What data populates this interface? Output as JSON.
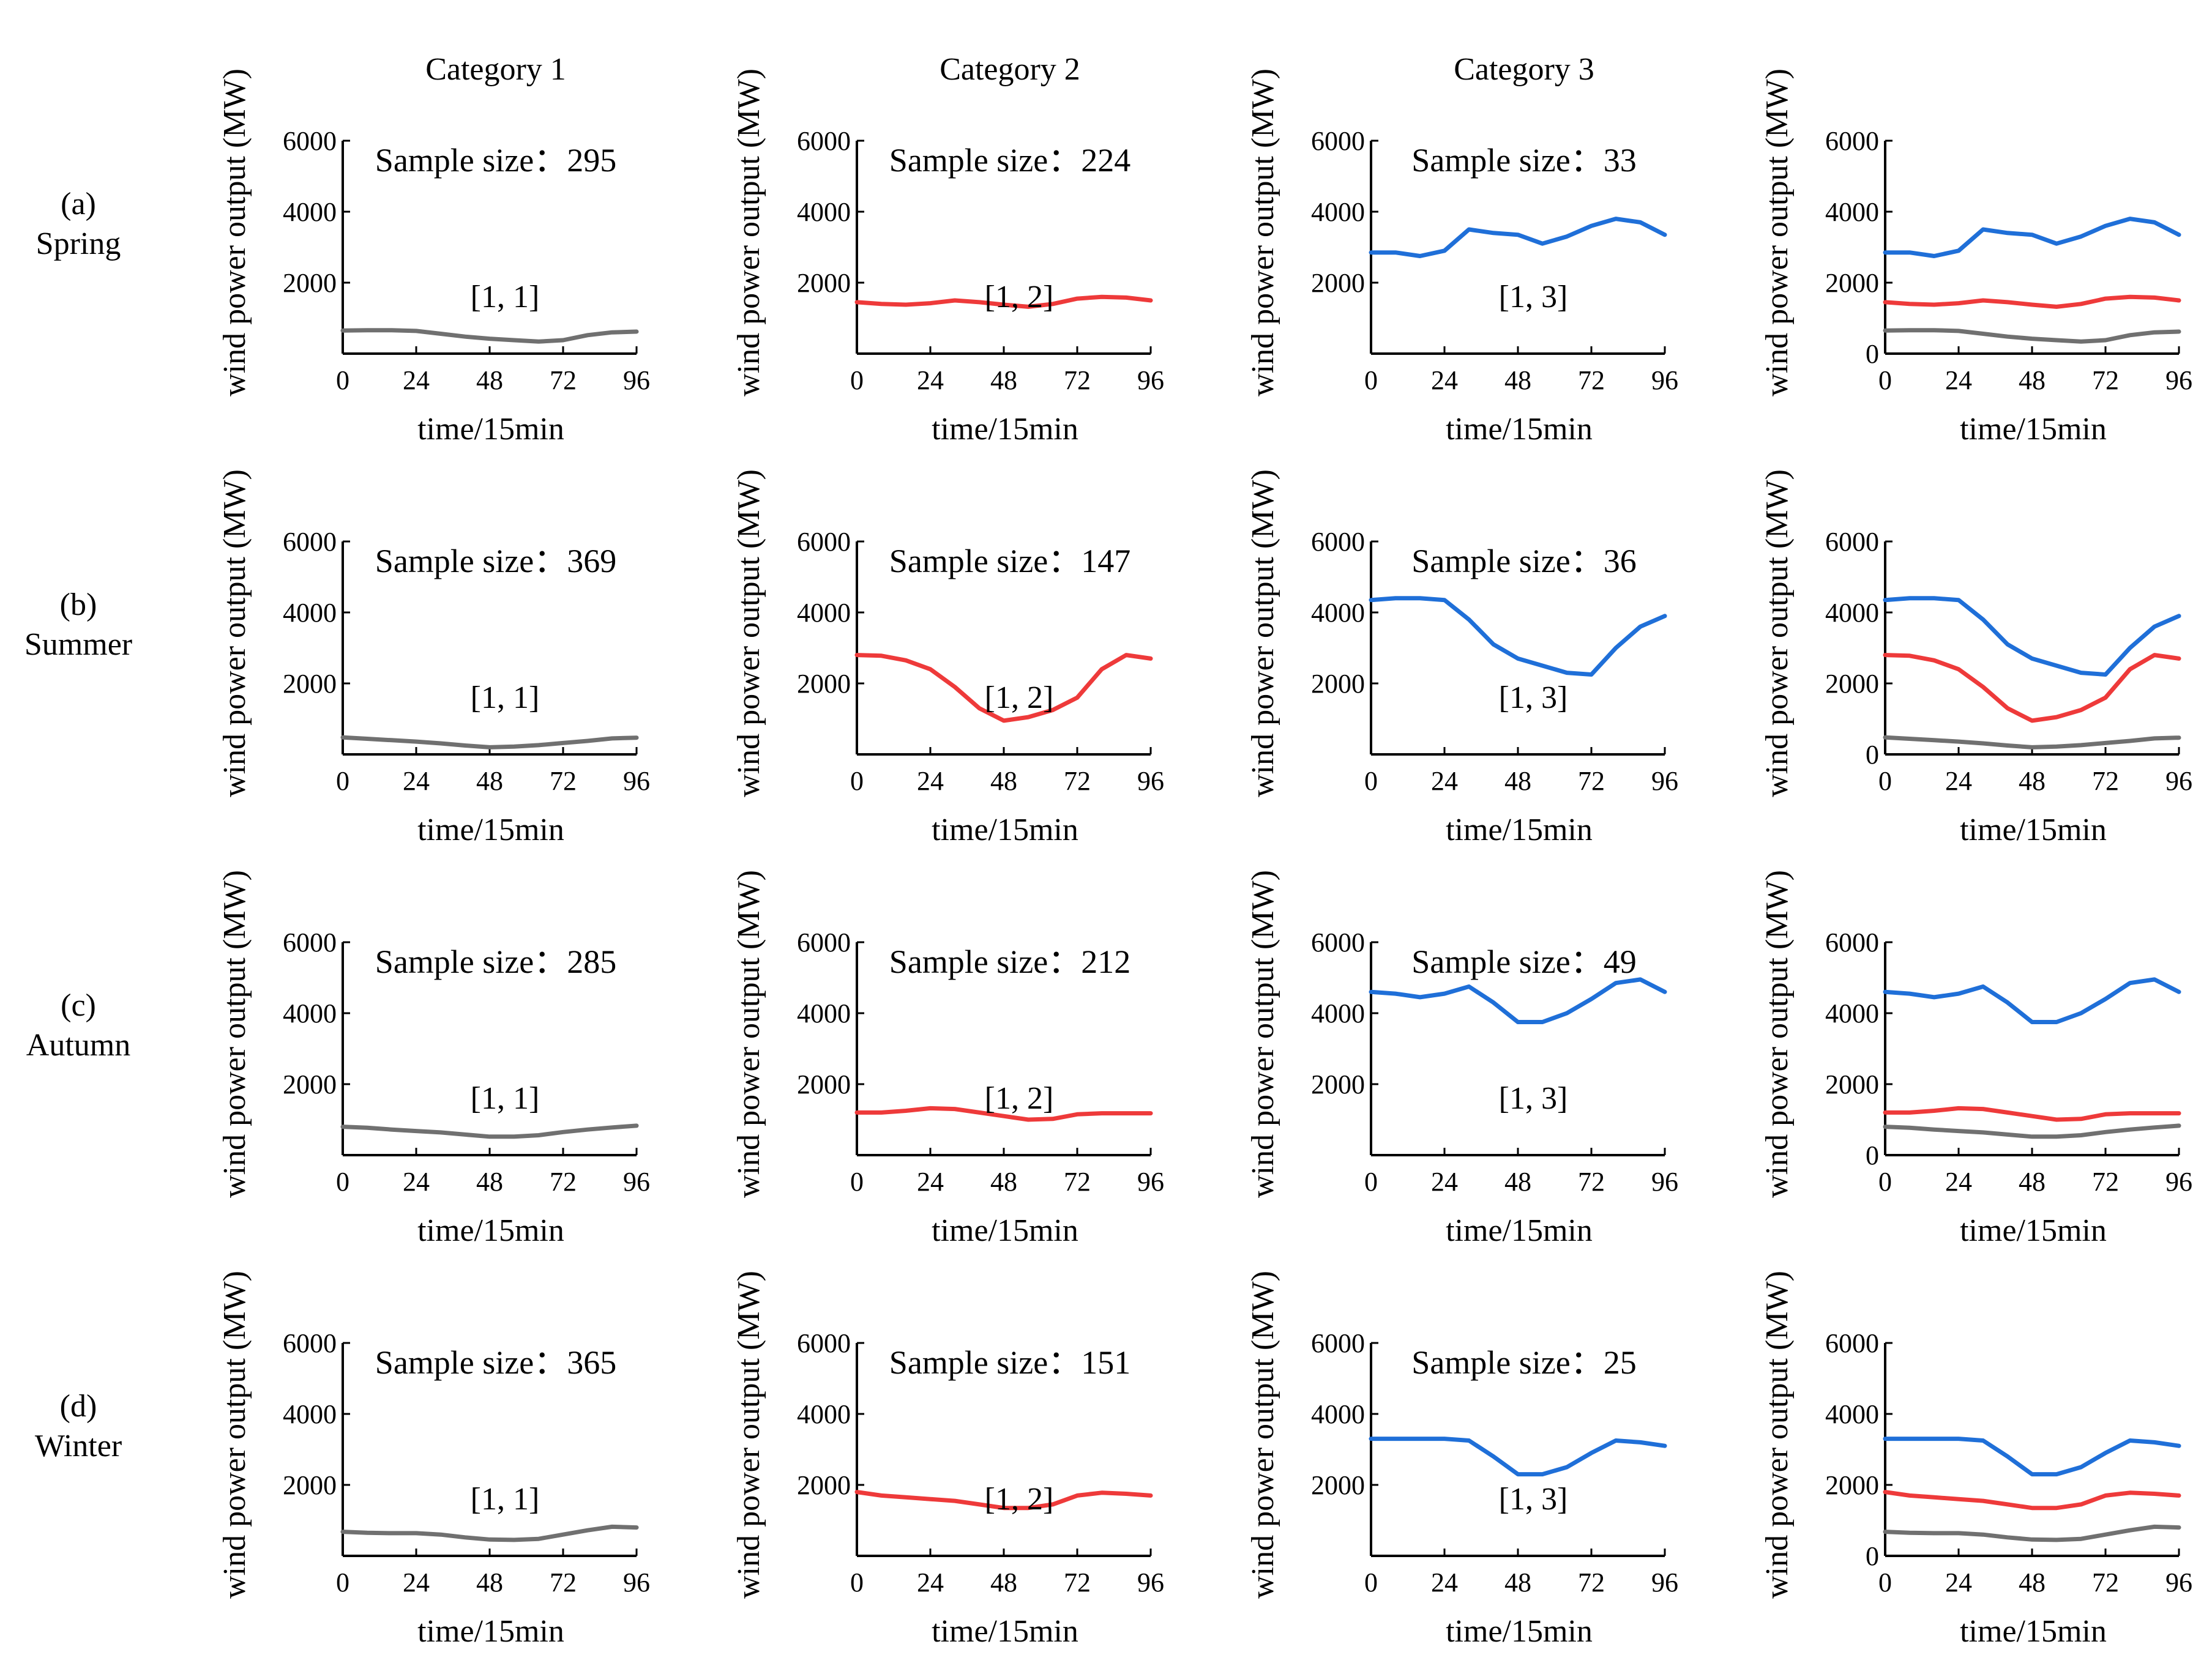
{
  "figure": {
    "column_titles": [
      "Category 1",
      "Category 2",
      "Category 3",
      ""
    ],
    "rows": [
      {
        "letter": "(a)",
        "season": "Spring"
      },
      {
        "letter": "(b)",
        "season": "Summer"
      },
      {
        "letter": "(c)",
        "season": "Autumn"
      },
      {
        "letter": "(d)",
        "season": "Winter"
      }
    ],
    "series_colors": {
      "c1": "#707070",
      "c2": "#ee3a3a",
      "c3": "#1f6fd8"
    }
  },
  "chart_data": {
    "type": "line",
    "xlabel": "time/15min",
    "ylabel": "wind power output (MW)",
    "xlim": [
      0,
      96
    ],
    "ylim": [
      0,
      6000
    ],
    "x_ticks": [
      "0",
      "24",
      "48",
      "72",
      "96"
    ],
    "y_ticks_single": [
      "2000",
      "4000",
      "6000"
    ],
    "y_ticks_combined": [
      "0",
      "2000",
      "4000",
      "6000"
    ],
    "x": [
      0,
      8,
      16,
      24,
      32,
      40,
      48,
      56,
      64,
      72,
      80,
      88,
      96
    ],
    "seasons": [
      {
        "name": "Spring",
        "samples": {
          "c1": "Sample size：295",
          "c2": "Sample size：224",
          "c3": "Sample size：33"
        },
        "tags": {
          "c1": "[1, 1]",
          "c2": "[1, 2]",
          "c3": "[1, 3]"
        },
        "series": {
          "c1": [
            650,
            660,
            660,
            640,
            560,
            480,
            420,
            380,
            340,
            380,
            520,
            600,
            620
          ],
          "c2": [
            1450,
            1400,
            1380,
            1420,
            1500,
            1450,
            1380,
            1320,
            1400,
            1550,
            1600,
            1580,
            1500
          ],
          "c3": [
            2850,
            2850,
            2750,
            2900,
            3500,
            3400,
            3350,
            3100,
            3300,
            3600,
            3800,
            3700,
            3350
          ]
        }
      },
      {
        "name": "Summer",
        "samples": {
          "c1": "Sample size：369",
          "c2": "Sample size：147",
          "c3": "Sample size：36"
        },
        "tags": {
          "c1": "[1, 1]",
          "c2": "[1, 2]",
          "c3": "[1, 3]"
        },
        "series": {
          "c1": [
            480,
            440,
            400,
            360,
            310,
            250,
            200,
            220,
            260,
            320,
            380,
            450,
            470
          ],
          "c2": [
            2800,
            2780,
            2650,
            2400,
            1900,
            1300,
            950,
            1050,
            1250,
            1600,
            2400,
            2800,
            2700
          ],
          "c3": [
            4350,
            4400,
            4400,
            4350,
            3800,
            3100,
            2700,
            2500,
            2300,
            2250,
            3000,
            3600,
            3900
          ]
        }
      },
      {
        "name": "Autumn",
        "samples": {
          "c1": "Sample size：285",
          "c2": "Sample size：212",
          "c3": "Sample size：49"
        },
        "tags": {
          "c1": "[1, 1]",
          "c2": "[1, 2]",
          "c3": "[1, 3]"
        },
        "series": {
          "c1": [
            800,
            770,
            720,
            680,
            640,
            580,
            520,
            520,
            560,
            650,
            720,
            780,
            830
          ],
          "c2": [
            1200,
            1200,
            1250,
            1320,
            1300,
            1200,
            1100,
            1000,
            1020,
            1150,
            1180,
            1180,
            1180
          ],
          "c3": [
            4600,
            4550,
            4450,
            4550,
            4750,
            4300,
            3750,
            3750,
            4000,
            4400,
            4850,
            4950,
            4600
          ]
        }
      },
      {
        "name": "Winter",
        "samples": {
          "c1": "Sample size：365",
          "c2": "Sample size：151",
          "c3": "Sample size：25"
        },
        "tags": {
          "c1": "[1, 1]",
          "c2": "[1, 2]",
          "c3": "[1, 3]"
        },
        "series": {
          "c1": [
            680,
            650,
            640,
            640,
            600,
            520,
            460,
            450,
            480,
            600,
            720,
            820,
            800
          ],
          "c2": [
            1800,
            1700,
            1650,
            1600,
            1550,
            1450,
            1350,
            1350,
            1450,
            1700,
            1780,
            1750,
            1700
          ],
          "c3": [
            3300,
            3300,
            3300,
            3300,
            3250,
            2800,
            2300,
            2300,
            2500,
            2900,
            3250,
            3200,
            3100
          ]
        }
      }
    ]
  }
}
